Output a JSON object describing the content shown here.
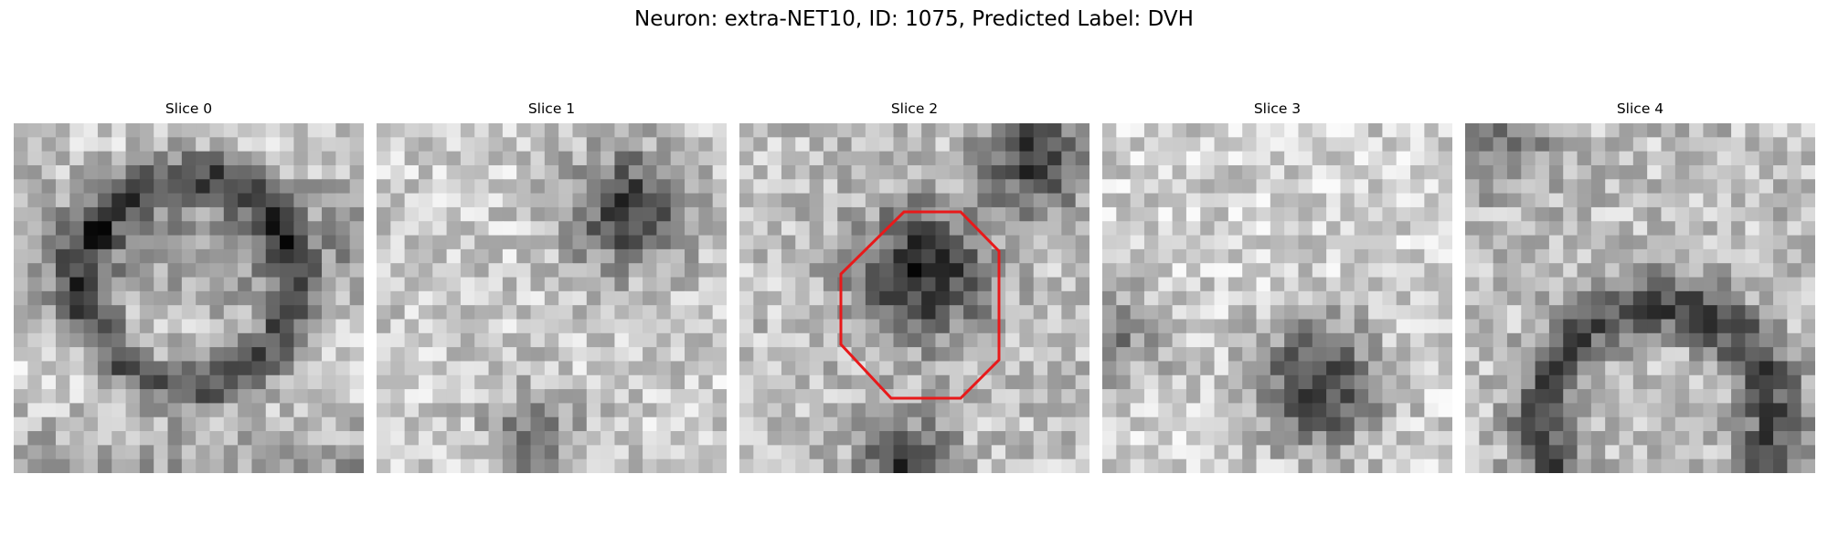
{
  "figure": {
    "title": "Neuron: extra-NET10, ID: 1075, Predicted Label: DVH"
  },
  "colors": {
    "roi_outline": "#e8191a",
    "colormap": "gray"
  },
  "panels": [
    {
      "title": "Slice 0",
      "seed": 11,
      "pattern": "ring",
      "roi": false
    },
    {
      "title": "Slice 1",
      "seed": 23,
      "pattern": "darkcorner",
      "roi": false
    },
    {
      "title": "Slice 2",
      "seed": 37,
      "pattern": "darkblob",
      "roi": true
    },
    {
      "title": "Slice 3",
      "seed": 41,
      "pattern": "lowerdark",
      "roi": false
    },
    {
      "title": "Slice 4",
      "seed": 59,
      "pattern": "arc",
      "roi": false
    }
  ]
}
